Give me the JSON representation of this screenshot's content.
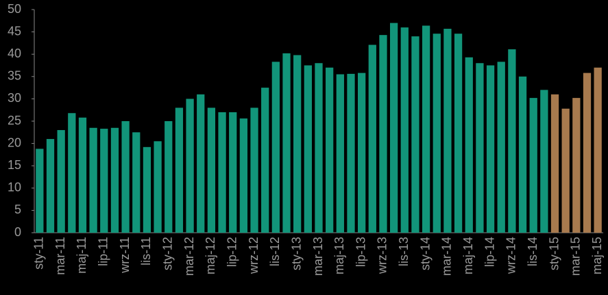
{
  "chart_data": {
    "type": "bar",
    "categories": [
      "sty-11",
      null,
      "mar-11",
      null,
      "maj-11",
      null,
      "lip-11",
      null,
      "wrz-11",
      null,
      "lis-11",
      null,
      "sty-12",
      null,
      "mar-12",
      null,
      "maj-12",
      null,
      "lip-12",
      null,
      "wrz-12",
      null,
      "lis-12",
      null,
      "sty-13",
      null,
      "mar-13",
      null,
      "maj-13",
      null,
      "lip-13",
      null,
      "wrz-13",
      null,
      "lis-13",
      null,
      "sty-14",
      null,
      "mar-14",
      null,
      "maj-14",
      null,
      "lip-14",
      null,
      "wrz-14",
      null,
      "lis-14",
      null,
      "sty-15",
      null,
      "mar-15",
      null,
      "maj-15"
    ],
    "values": [
      18.8,
      21,
      23,
      26.8,
      25.8,
      23.5,
      23.3,
      23.5,
      25,
      22.5,
      19.2,
      20.5,
      25,
      28,
      30,
      31,
      28,
      27,
      27,
      25.6,
      28,
      32.5,
      38.3,
      40.2,
      39.8,
      37.5,
      38,
      37,
      35.5,
      35.6,
      35.8,
      42.1,
      44.3,
      47,
      46,
      44,
      46.4,
      44.6,
      45.7,
      44.6,
      39.3,
      38,
      37.5,
      38.3,
      41.1,
      35,
      30.2,
      32,
      31,
      27.8,
      30.2,
      35.8,
      37
    ],
    "colors": [
      "#12957a",
      "#12957a",
      "#12957a",
      "#12957a",
      "#12957a",
      "#12957a",
      "#12957a",
      "#12957a",
      "#12957a",
      "#12957a",
      "#12957a",
      "#12957a",
      "#12957a",
      "#12957a",
      "#12957a",
      "#12957a",
      "#12957a",
      "#12957a",
      "#12957a",
      "#12957a",
      "#12957a",
      "#12957a",
      "#12957a",
      "#12957a",
      "#12957a",
      "#12957a",
      "#12957a",
      "#12957a",
      "#12957a",
      "#12957a",
      "#12957a",
      "#12957a",
      "#12957a",
      "#12957a",
      "#12957a",
      "#12957a",
      "#12957a",
      "#12957a",
      "#12957a",
      "#12957a",
      "#12957a",
      "#12957a",
      "#12957a",
      "#12957a",
      "#12957a",
      "#12957a",
      "#12957a",
      "#12957a",
      "#a87a4e",
      "#a87a4e",
      "#a87a4e",
      "#a87a4e",
      "#a87a4e"
    ],
    "ylim": [
      0,
      50
    ],
    "yticks": [
      0,
      5,
      10,
      15,
      20,
      25,
      30,
      35,
      40,
      45,
      50
    ],
    "grid": false
  }
}
